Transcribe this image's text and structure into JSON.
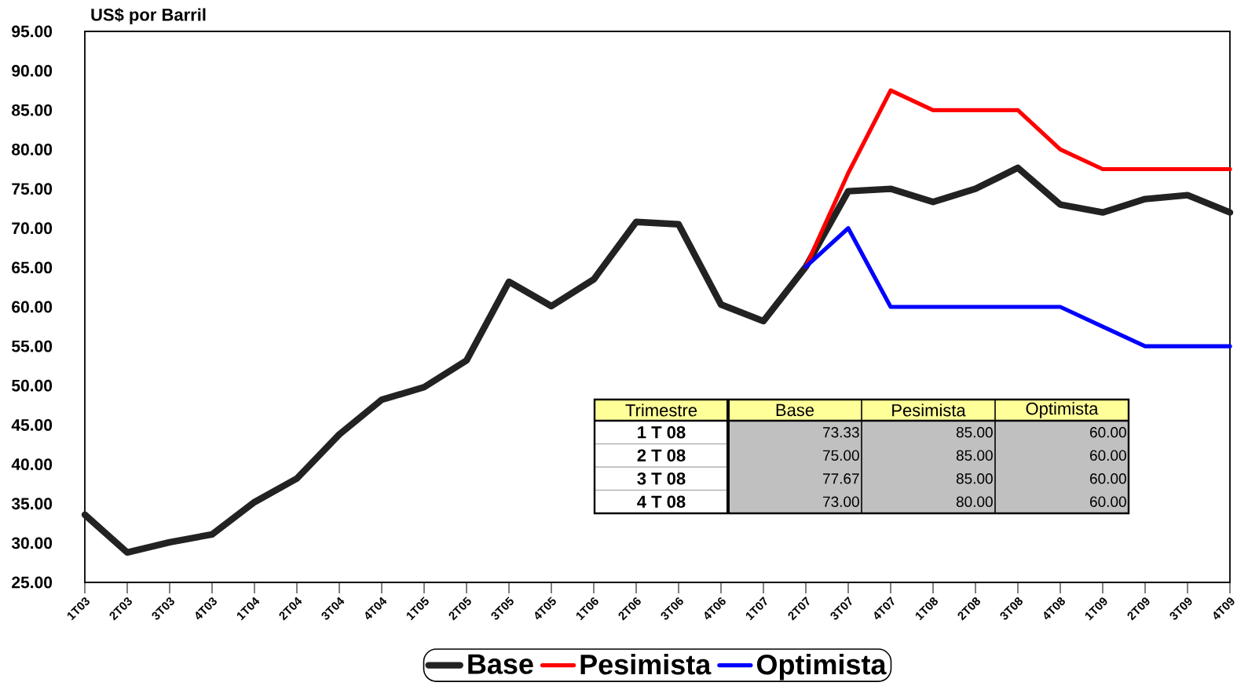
{
  "chart_data": {
    "type": "line",
    "ylabel": "US$ por Barril",
    "categories": [
      "1T03",
      "2T03",
      "3T03",
      "4T03",
      "1T04",
      "2T04",
      "3T04",
      "4T04",
      "1T05",
      "2T05",
      "3T05",
      "4T05",
      "1T06",
      "2T06",
      "3T06",
      "4T06",
      "1T07",
      "2T07",
      "3T07",
      "4T07",
      "1T08",
      "2T08",
      "3T08",
      "4T08",
      "1T09",
      "2T09",
      "3T09",
      "4T09"
    ],
    "series": [
      {
        "name": "Base",
        "color": "#222222",
        "values": [
          33.6,
          28.8,
          30.1,
          31.1,
          35.2,
          38.2,
          43.8,
          48.2,
          49.8,
          53.2,
          63.2,
          60.1,
          63.5,
          70.8,
          70.5,
          60.3,
          58.2,
          65.1,
          74.7,
          75.0,
          73.33,
          75.0,
          77.67,
          73.0,
          72.0,
          73.7,
          74.2,
          72.0
        ]
      },
      {
        "name": "Pesimista",
        "color": "#ff0000",
        "values": [
          null,
          null,
          null,
          null,
          null,
          null,
          null,
          null,
          null,
          null,
          null,
          null,
          null,
          null,
          null,
          null,
          null,
          65.1,
          77.0,
          87.5,
          85.0,
          85.0,
          85.0,
          80.0,
          77.5,
          77.5,
          77.5,
          77.5
        ]
      },
      {
        "name": "Optimista",
        "color": "#0000ff",
        "values": [
          null,
          null,
          null,
          null,
          null,
          null,
          null,
          null,
          null,
          null,
          null,
          null,
          null,
          null,
          null,
          null,
          null,
          65.1,
          70.0,
          60.0,
          60.0,
          60.0,
          60.0,
          60.0,
          57.5,
          55.0,
          55.0,
          55.0
        ]
      }
    ],
    "ylim": [
      25,
      95
    ],
    "yticks": [
      {
        "value": 25,
        "label": "25.00"
      },
      {
        "value": 30,
        "label": "30.00"
      },
      {
        "value": 35,
        "label": "35.00"
      },
      {
        "value": 40,
        "label": "40.00"
      },
      {
        "value": 45,
        "label": "45.00"
      },
      {
        "value": 50,
        "label": "50.00"
      },
      {
        "value": 55,
        "label": "55.00"
      },
      {
        "value": 60,
        "label": "60.00"
      },
      {
        "value": 65,
        "label": "65.00"
      },
      {
        "value": 70,
        "label": "70.00"
      },
      {
        "value": 75,
        "label": "75.00"
      },
      {
        "value": 80,
        "label": "80.00"
      },
      {
        "value": 85,
        "label": "85.00"
      },
      {
        "value": 90,
        "label": "90.00"
      },
      {
        "value": 95,
        "label": "95.00"
      }
    ],
    "annotations": [
      "Trimestre",
      "1 T 08",
      "73.33",
      "85.00",
      "60.00",
      "2 T 08",
      "75.00",
      "85.00",
      "60.00",
      "3 T 08",
      "77.67",
      "85.00",
      "60.00",
      "4 T 08",
      "73.00",
      "80.00",
      "60.00"
    ],
    "legend": "bottom"
  }
}
